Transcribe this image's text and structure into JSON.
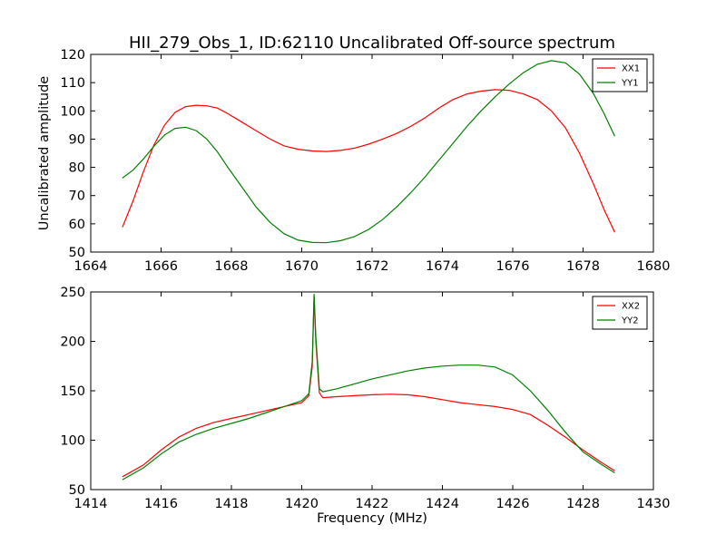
{
  "title": "HII_279_Obs_1, ID:62110 Uncalibrated Off-source spectrum",
  "chart_data": [
    {
      "type": "line",
      "title": "HII_279_Obs_1, ID:62110 Uncalibrated Off-source spectrum",
      "xlabel": "",
      "ylabel": "Uncalibrated amplitude",
      "xlim": [
        1664,
        1680
      ],
      "ylim": [
        50,
        120
      ],
      "xticks": [
        1664,
        1666,
        1668,
        1670,
        1672,
        1674,
        1676,
        1678,
        1680
      ],
      "yticks": [
        50,
        60,
        70,
        80,
        90,
        100,
        110,
        120
      ],
      "grid": false,
      "legend": "top-right",
      "series": [
        {
          "name": "XX1",
          "color": "#ff0000",
          "x": [
            1664.9,
            1665.2,
            1665.5,
            1665.8,
            1666.1,
            1666.4,
            1666.7,
            1667.0,
            1667.3,
            1667.6,
            1667.9,
            1668.3,
            1668.7,
            1669.1,
            1669.5,
            1669.9,
            1670.3,
            1670.7,
            1671.1,
            1671.5,
            1671.9,
            1672.3,
            1672.7,
            1673.1,
            1673.5,
            1673.9,
            1674.3,
            1674.7,
            1675.1,
            1675.5,
            1675.9,
            1676.3,
            1676.7,
            1677.1,
            1677.5,
            1677.9,
            1678.3,
            1678.6,
            1678.9
          ],
          "values": [
            58.8,
            68.0,
            78.5,
            88.0,
            95.0,
            99.5,
            101.5,
            102.0,
            101.8,
            101.0,
            99.0,
            96.0,
            93.0,
            90.0,
            87.6,
            86.4,
            85.8,
            85.6,
            86.0,
            86.8,
            88.2,
            90.0,
            92.0,
            94.5,
            97.5,
            101.0,
            104.0,
            106.0,
            107.0,
            107.5,
            107.3,
            106.0,
            104.0,
            100.0,
            94.0,
            85.0,
            74.0,
            65.0,
            57.0
          ]
        },
        {
          "name": "YY1",
          "color": "#008000",
          "x": [
            1664.9,
            1665.2,
            1665.5,
            1665.8,
            1666.1,
            1666.4,
            1666.7,
            1667.0,
            1667.3,
            1667.6,
            1667.9,
            1668.3,
            1668.7,
            1669.1,
            1669.5,
            1669.9,
            1670.3,
            1670.7,
            1671.1,
            1671.5,
            1671.9,
            1672.3,
            1672.7,
            1673.1,
            1673.5,
            1673.9,
            1674.3,
            1674.7,
            1675.1,
            1675.5,
            1675.9,
            1676.3,
            1676.7,
            1677.1,
            1677.5,
            1677.9,
            1678.3,
            1678.6,
            1678.9
          ],
          "values": [
            76.2,
            79.0,
            83.0,
            87.5,
            91.5,
            93.8,
            94.2,
            93.0,
            90.0,
            85.5,
            80.0,
            73.0,
            66.0,
            60.5,
            56.5,
            54.2,
            53.4,
            53.3,
            54.0,
            55.5,
            58.0,
            61.5,
            66.0,
            71.0,
            76.5,
            82.5,
            88.5,
            94.5,
            100.0,
            105.0,
            109.5,
            113.5,
            116.5,
            117.8,
            117.0,
            113.0,
            106.0,
            99.0,
            91.0
          ]
        }
      ]
    },
    {
      "type": "line",
      "title": "",
      "xlabel": "Frequency (MHz)",
      "ylabel": "",
      "xlim": [
        1414,
        1430
      ],
      "ylim": [
        50,
        250
      ],
      "xticks": [
        1414,
        1416,
        1418,
        1420,
        1422,
        1424,
        1426,
        1428,
        1430
      ],
      "yticks": [
        50,
        100,
        150,
        200,
        250
      ],
      "grid": false,
      "legend": "top-right",
      "series": [
        {
          "name": "XX2",
          "color": "#ff0000",
          "x": [
            1414.9,
            1415.5,
            1416.0,
            1416.5,
            1417.0,
            1417.5,
            1418.0,
            1418.5,
            1419.0,
            1419.5,
            1420.0,
            1420.2,
            1420.3,
            1420.35,
            1420.4,
            1420.5,
            1420.6,
            1421.0,
            1421.5,
            1422.0,
            1422.5,
            1423.0,
            1423.5,
            1424.0,
            1424.5,
            1425.0,
            1425.5,
            1426.0,
            1426.5,
            1427.0,
            1427.5,
            1428.0,
            1428.5,
            1428.9
          ],
          "values": [
            63,
            75,
            90,
            103,
            112,
            118,
            122,
            126,
            130,
            134,
            138,
            145,
            175,
            245,
            200,
            148,
            143,
            144,
            145,
            146,
            146.5,
            146,
            144,
            141,
            138,
            136,
            134,
            131,
            126,
            115,
            103,
            90,
            78,
            69
          ]
        },
        {
          "name": "YY2",
          "color": "#008000",
          "x": [
            1414.9,
            1415.5,
            1416.0,
            1416.5,
            1417.0,
            1417.5,
            1418.0,
            1418.5,
            1419.0,
            1419.5,
            1420.0,
            1420.2,
            1420.3,
            1420.35,
            1420.4,
            1420.5,
            1420.6,
            1421.0,
            1421.5,
            1422.0,
            1422.5,
            1423.0,
            1423.5,
            1424.0,
            1424.5,
            1425.0,
            1425.5,
            1426.0,
            1426.5,
            1427.0,
            1427.5,
            1428.0,
            1428.5,
            1428.9
          ],
          "values": [
            60,
            72,
            86,
            98,
            106,
            112,
            117,
            122,
            128,
            134,
            140,
            147,
            180,
            248,
            205,
            152,
            149,
            152,
            157,
            162,
            166,
            170,
            173,
            175,
            176,
            176,
            174,
            166,
            150,
            130,
            108,
            88,
            76,
            67
          ]
        }
      ]
    }
  ]
}
